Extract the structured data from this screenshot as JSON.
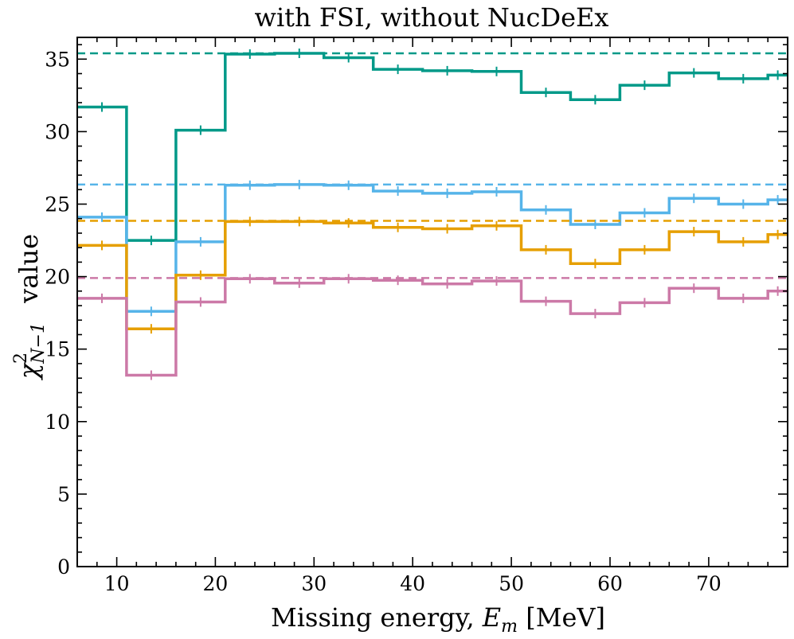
{
  "chart_data": {
    "type": "line",
    "subtype": "step-histogram",
    "title": "with FSI, without NucDeEx",
    "xlabel": {
      "prefix": "Missing energy, ",
      "symbol": "E",
      "subscript": "m",
      "suffix": " [MeV]"
    },
    "ylabel": {
      "symbol": "χ",
      "superscript": "2",
      "subscript": "N−1",
      "suffix": "value"
    },
    "xlim": [
      6,
      78
    ],
    "ylim": [
      0,
      36.5
    ],
    "xticks": [
      10,
      20,
      30,
      40,
      50,
      60,
      70
    ],
    "xtick_labels": [
      "10",
      "20",
      "30",
      "40",
      "50",
      "60",
      "70"
    ],
    "yticks": [
      0,
      5,
      10,
      15,
      20,
      25,
      30,
      35
    ],
    "ytick_labels": [
      "0",
      "5",
      "10",
      "15",
      "20",
      "25",
      "30",
      "35"
    ],
    "x_minor_step": 2,
    "y_minor_step": 1,
    "grid": false,
    "bin_edges": [
      6,
      11,
      16,
      21,
      26,
      31,
      36,
      41,
      46,
      51,
      56,
      61,
      66,
      71,
      76,
      78
    ],
    "series": [
      {
        "name": "teal",
        "color": "#009988",
        "values": [
          31.7,
          22.5,
          30.1,
          35.35,
          35.4,
          35.1,
          34.3,
          34.2,
          34.15,
          32.7,
          32.2,
          33.2,
          34.05,
          33.65,
          33.9
        ],
        "reference": 35.4
      },
      {
        "name": "sky blue",
        "color": "#56B4E9",
        "values": [
          24.1,
          17.6,
          22.4,
          26.3,
          26.35,
          26.3,
          25.9,
          25.75,
          25.85,
          24.6,
          23.6,
          24.4,
          25.4,
          25.0,
          25.3
        ],
        "reference": 26.35
      },
      {
        "name": "orange",
        "color": "#E69F00",
        "values": [
          22.15,
          16.4,
          20.1,
          23.8,
          23.8,
          23.7,
          23.4,
          23.3,
          23.5,
          21.85,
          20.9,
          21.85,
          23.1,
          22.4,
          22.9
        ],
        "reference": 23.85
      },
      {
        "name": "pink",
        "color": "#CC79A7",
        "values": [
          18.5,
          13.2,
          18.25,
          19.85,
          19.55,
          19.85,
          19.75,
          19.5,
          19.7,
          18.3,
          17.45,
          18.2,
          19.2,
          18.5,
          19.0
        ],
        "reference": 19.9
      }
    ]
  }
}
